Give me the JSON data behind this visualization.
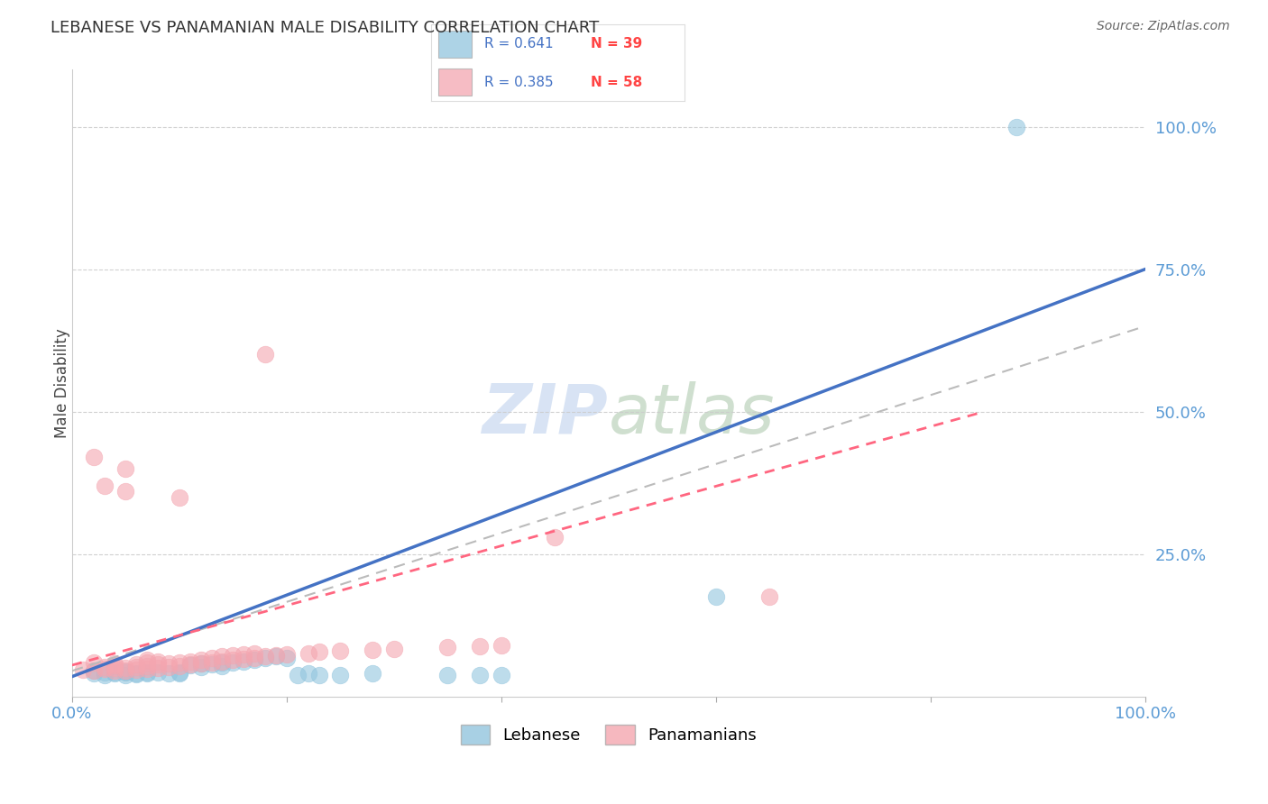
{
  "title": "LEBANESE VS PANAMANIAN MALE DISABILITY CORRELATION CHART",
  "source": "Source: ZipAtlas.com",
  "ylabel": "Male Disability",
  "ytick_labels": [
    "100.0%",
    "75.0%",
    "50.0%",
    "25.0%"
  ],
  "ytick_positions": [
    1.0,
    0.75,
    0.5,
    0.25
  ],
  "xlim": [
    0.0,
    1.0
  ],
  "ylim": [
    0.0,
    1.1
  ],
  "lebanese_color": "#92C5DE",
  "panamanian_color": "#F4A6B0",
  "lebanese_line_color": "#4472C4",
  "panamanian_line_color": "#FF6680",
  "dashed_line_color": "#BBBBBB",
  "background_color": "#FFFFFF",
  "tick_color": "#5B9BD5",
  "lebanese_points": [
    [
      0.02,
      0.04
    ],
    [
      0.02,
      0.045
    ],
    [
      0.03,
      0.042
    ],
    [
      0.03,
      0.038
    ],
    [
      0.04,
      0.043
    ],
    [
      0.04,
      0.04
    ],
    [
      0.05,
      0.042
    ],
    [
      0.05,
      0.038
    ],
    [
      0.05,
      0.044
    ],
    [
      0.06,
      0.041
    ],
    [
      0.06,
      0.039
    ],
    [
      0.07,
      0.043
    ],
    [
      0.07,
      0.04
    ],
    [
      0.08,
      0.042
    ],
    [
      0.09,
      0.041
    ],
    [
      0.1,
      0.043
    ],
    [
      0.1,
      0.04
    ],
    [
      0.11,
      0.055
    ],
    [
      0.12,
      0.058
    ],
    [
      0.12,
      0.052
    ],
    [
      0.13,
      0.057
    ],
    [
      0.14,
      0.06
    ],
    [
      0.14,
      0.053
    ],
    [
      0.15,
      0.06
    ],
    [
      0.16,
      0.062
    ],
    [
      0.17,
      0.065
    ],
    [
      0.18,
      0.068
    ],
    [
      0.19,
      0.07
    ],
    [
      0.2,
      0.068
    ],
    [
      0.21,
      0.038
    ],
    [
      0.22,
      0.04
    ],
    [
      0.23,
      0.038
    ],
    [
      0.25,
      0.038
    ],
    [
      0.28,
      0.04
    ],
    [
      0.35,
      0.038
    ],
    [
      0.38,
      0.038
    ],
    [
      0.4,
      0.038
    ],
    [
      0.6,
      0.175
    ],
    [
      0.88,
      1.0
    ]
  ],
  "panamanian_points": [
    [
      0.01,
      0.047
    ],
    [
      0.02,
      0.045
    ],
    [
      0.02,
      0.06
    ],
    [
      0.02,
      0.42
    ],
    [
      0.03,
      0.048
    ],
    [
      0.03,
      0.052
    ],
    [
      0.03,
      0.37
    ],
    [
      0.04,
      0.046
    ],
    [
      0.04,
      0.05
    ],
    [
      0.04,
      0.055
    ],
    [
      0.04,
      0.058
    ],
    [
      0.05,
      0.046
    ],
    [
      0.05,
      0.05
    ],
    [
      0.05,
      0.36
    ],
    [
      0.05,
      0.4
    ],
    [
      0.06,
      0.047
    ],
    [
      0.06,
      0.052
    ],
    [
      0.06,
      0.057
    ],
    [
      0.07,
      0.048
    ],
    [
      0.07,
      0.054
    ],
    [
      0.07,
      0.06
    ],
    [
      0.07,
      0.065
    ],
    [
      0.08,
      0.05
    ],
    [
      0.08,
      0.056
    ],
    [
      0.08,
      0.062
    ],
    [
      0.09,
      0.052
    ],
    [
      0.09,
      0.058
    ],
    [
      0.1,
      0.054
    ],
    [
      0.1,
      0.06
    ],
    [
      0.1,
      0.35
    ],
    [
      0.11,
      0.056
    ],
    [
      0.11,
      0.062
    ],
    [
      0.12,
      0.058
    ],
    [
      0.12,
      0.065
    ],
    [
      0.13,
      0.06
    ],
    [
      0.13,
      0.067
    ],
    [
      0.14,
      0.062
    ],
    [
      0.14,
      0.07
    ],
    [
      0.15,
      0.064
    ],
    [
      0.15,
      0.072
    ],
    [
      0.16,
      0.066
    ],
    [
      0.16,
      0.074
    ],
    [
      0.17,
      0.068
    ],
    [
      0.17,
      0.076
    ],
    [
      0.18,
      0.07
    ],
    [
      0.18,
      0.6
    ],
    [
      0.19,
      0.072
    ],
    [
      0.2,
      0.074
    ],
    [
      0.22,
      0.076
    ],
    [
      0.23,
      0.078
    ],
    [
      0.25,
      0.08
    ],
    [
      0.28,
      0.082
    ],
    [
      0.3,
      0.084
    ],
    [
      0.35,
      0.086
    ],
    [
      0.38,
      0.088
    ],
    [
      0.4,
      0.09
    ],
    [
      0.45,
      0.28
    ],
    [
      0.65,
      0.175
    ]
  ],
  "leb_line_x": [
    0.0,
    1.0
  ],
  "leb_line_y": [
    0.035,
    0.75
  ],
  "pan_line_x": [
    0.0,
    0.85
  ],
  "pan_line_y": [
    0.055,
    0.5
  ],
  "dashed_line_x": [
    0.0,
    1.0
  ],
  "dashed_line_y": [
    0.045,
    0.65
  ]
}
